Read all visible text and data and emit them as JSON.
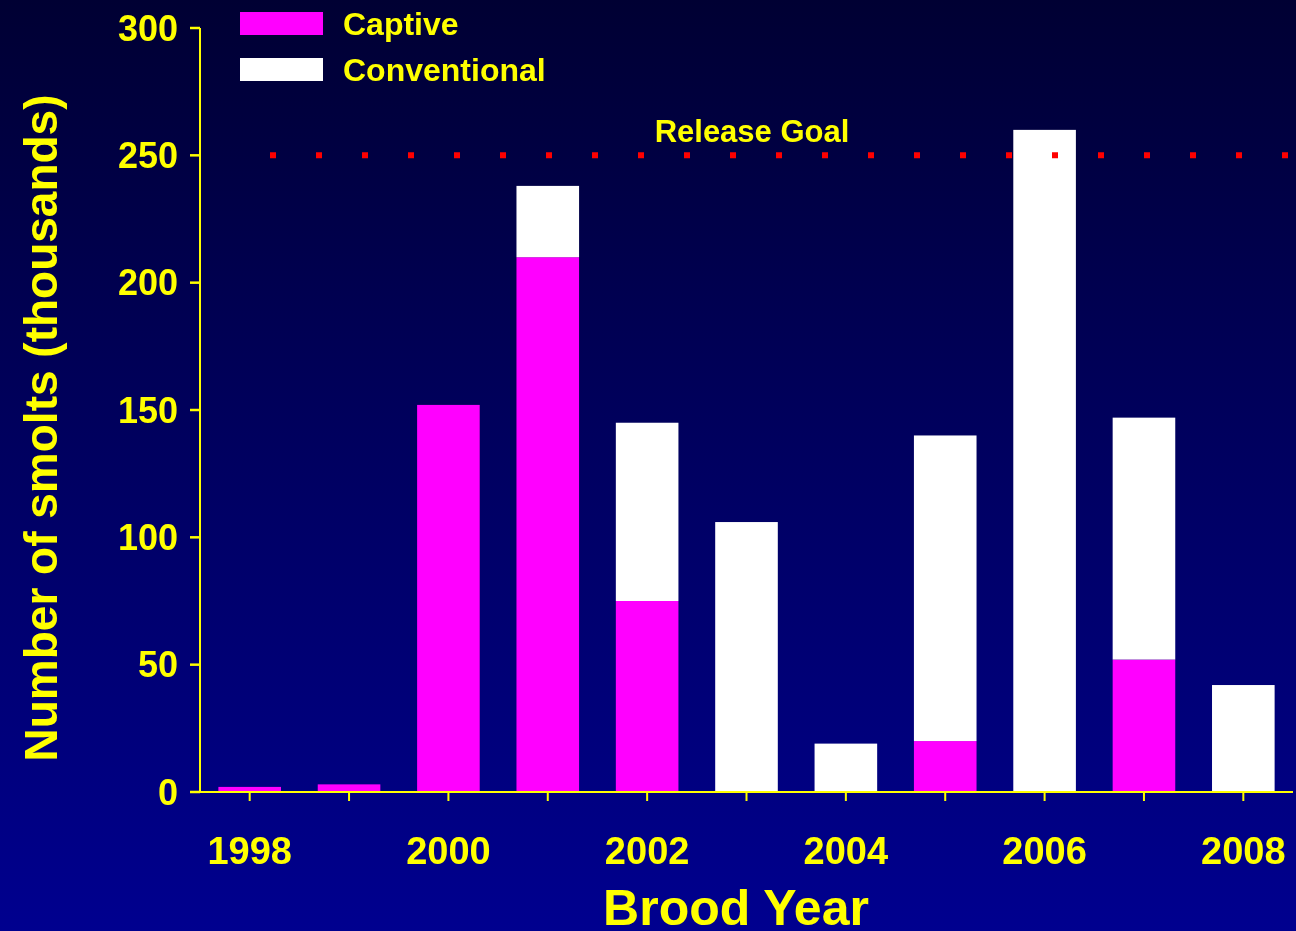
{
  "chart_data": {
    "type": "bar",
    "stacked": true,
    "xlabel": "Brood Year",
    "ylabel": "Number of smolts (thousands)",
    "categories": [
      "1998",
      null,
      "2000",
      null,
      "2002",
      null,
      "2004",
      null,
      "2006",
      null,
      "2008"
    ],
    "series": [
      {
        "name": "Captive",
        "color": "#ff00ff",
        "values": [
          2,
          3,
          152,
          210,
          75,
          0,
          0,
          20,
          0,
          52,
          0
        ]
      },
      {
        "name": "Conventional",
        "color": "#ffffff",
        "values": [
          0,
          0,
          0,
          28,
          70,
          106,
          19,
          120,
          260,
          95,
          42
        ]
      }
    ],
    "ylim": [
      0,
      300
    ],
    "yticks": [
      0,
      50,
      100,
      150,
      200,
      250,
      300
    ],
    "ref_lines": [
      {
        "axis": "y",
        "value": 250,
        "label": "Release Goal",
        "color": "#ff0000",
        "line_style": "dotted"
      }
    ],
    "legend": "top left",
    "grid": false
  }
}
